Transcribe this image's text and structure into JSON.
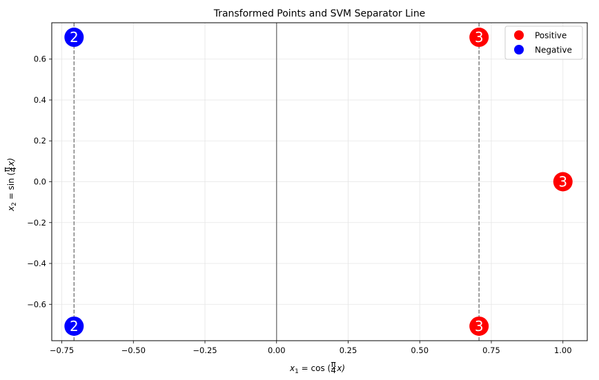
{
  "chart_data": {
    "type": "scatter",
    "title": "Transformed Points and SVM Separator Line",
    "xlabel_parts": {
      "pre": "x",
      "sub": "1",
      "eq": " = cos (",
      "frac_num": "π",
      "frac_den": "4",
      "post": "x)"
    },
    "ylabel_parts": {
      "pre": "x",
      "sub": "2",
      "eq": " = sin (",
      "frac_num": "π",
      "frac_den": "4",
      "post": "x)"
    },
    "xlim": [
      -0.785,
      1.085
    ],
    "ylim": [
      -0.778,
      0.778
    ],
    "xticks": [
      -0.75,
      -0.5,
      -0.25,
      0.0,
      0.25,
      0.5,
      0.75,
      1.0
    ],
    "xtick_labels": [
      "−0.75",
      "−0.50",
      "−0.25",
      "0.00",
      "0.25",
      "0.50",
      "0.75",
      "1.00"
    ],
    "yticks": [
      -0.6,
      -0.4,
      -0.2,
      0.0,
      0.2,
      0.4,
      0.6
    ],
    "ytick_labels": [
      "−0.6",
      "−0.4",
      "−0.2",
      "0.0",
      "0.2",
      "0.4",
      "0.6"
    ],
    "grid": true,
    "legend_position": "top-right",
    "series": [
      {
        "name": "Positive",
        "color": "#ff0000",
        "points": [
          {
            "x": 0.7071,
            "y": 0.7071,
            "label": "3"
          },
          {
            "x": 0.7071,
            "y": -0.7071,
            "label": "3"
          },
          {
            "x": 1.0,
            "y": 0.0,
            "label": "3"
          }
        ]
      },
      {
        "name": "Negative",
        "color": "#0000ff",
        "points": [
          {
            "x": -0.7071,
            "y": 0.7071,
            "label": "2"
          },
          {
            "x": -0.7071,
            "y": -0.7071,
            "label": "2"
          }
        ]
      }
    ],
    "separator_line": {
      "x": 0.0,
      "style": "solid",
      "color": "#808080"
    },
    "margin_lines": [
      {
        "x": -0.7071,
        "style": "dashed",
        "color": "#808080"
      },
      {
        "x": 0.7071,
        "style": "dashed",
        "color": "#808080"
      }
    ]
  }
}
